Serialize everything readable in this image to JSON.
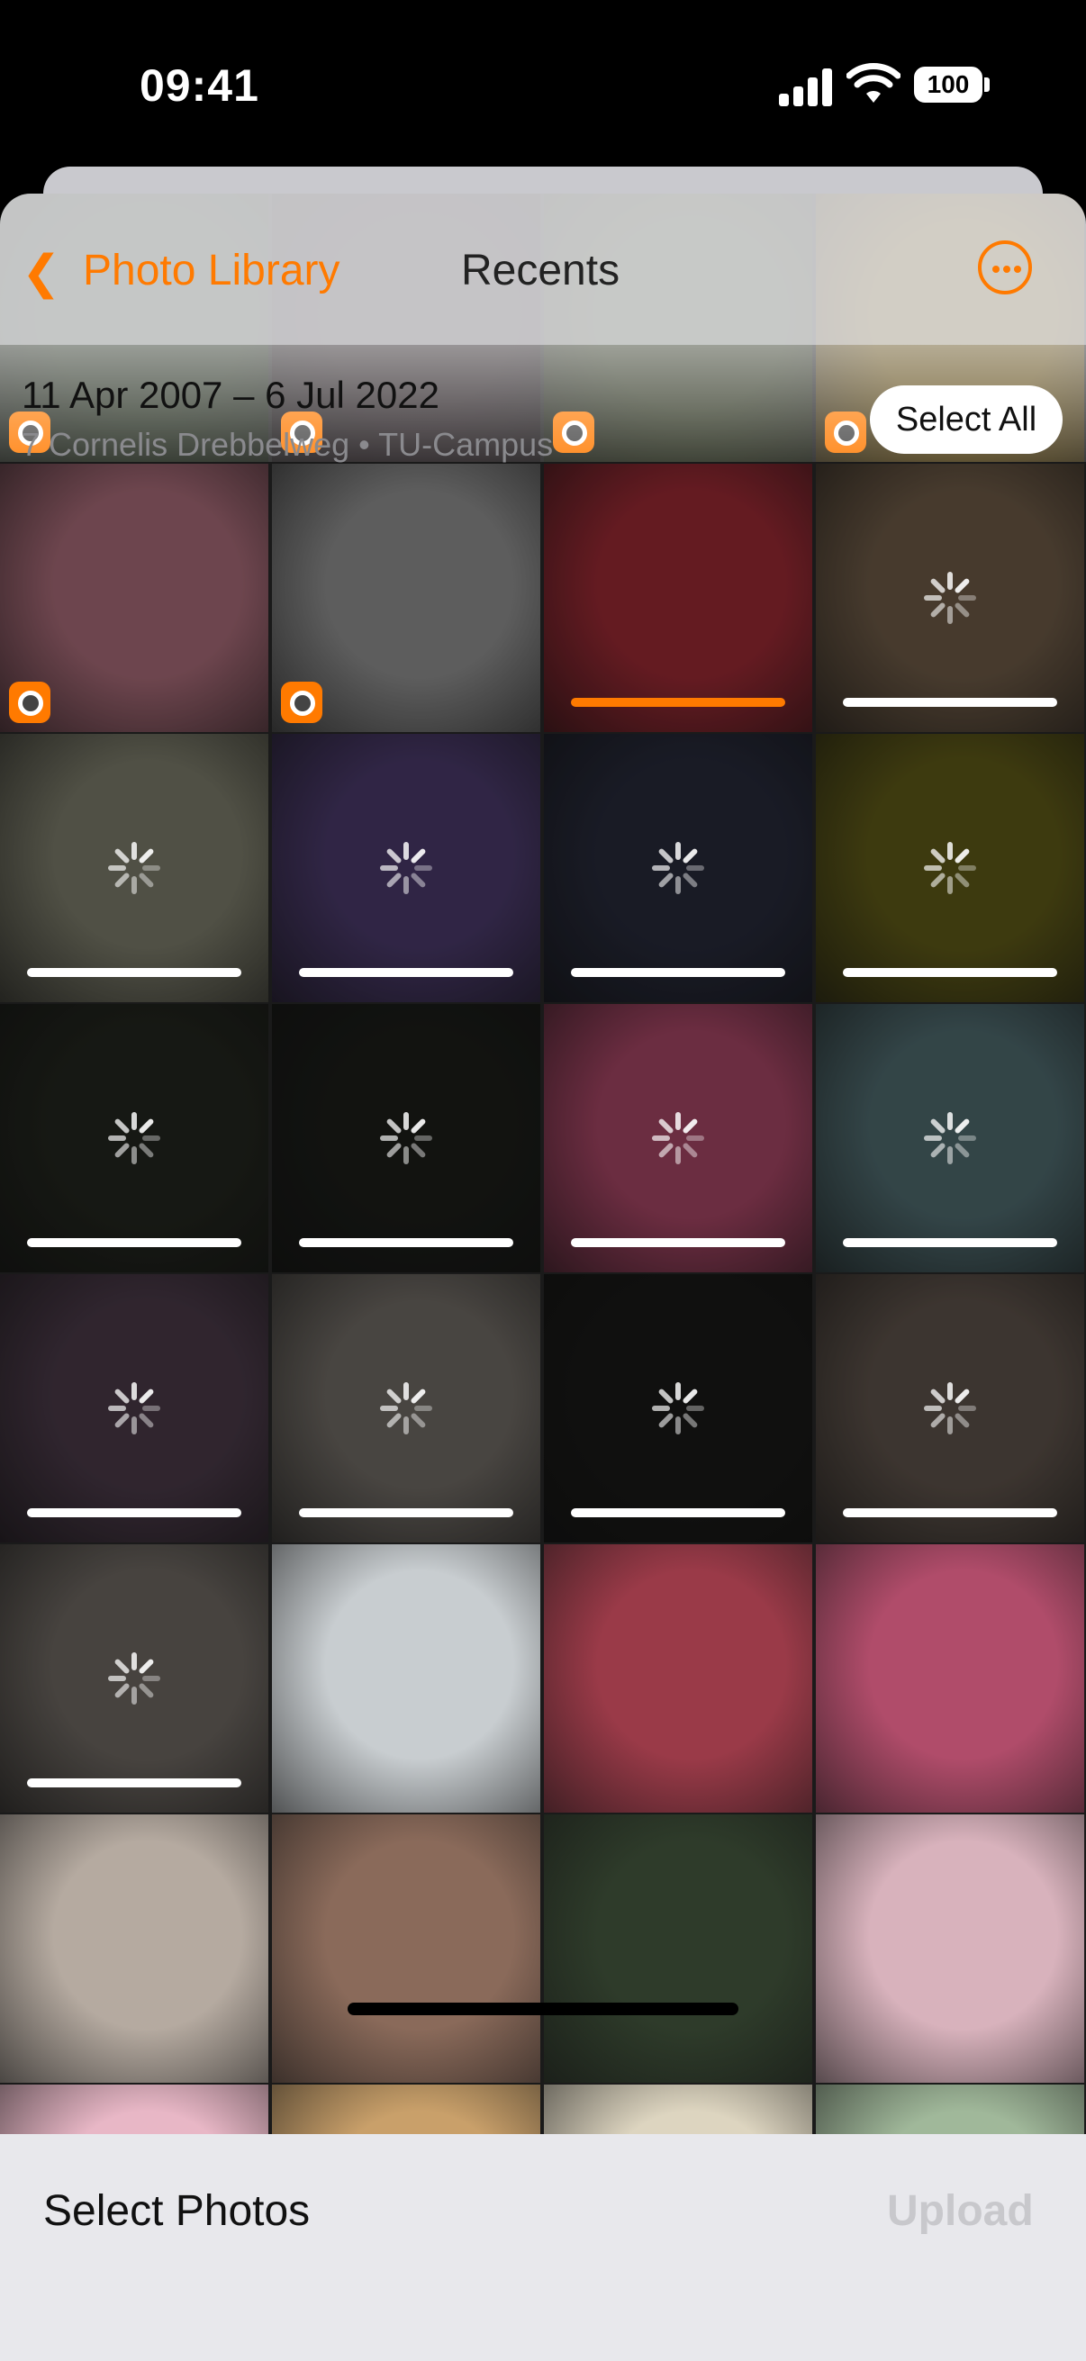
{
  "status": {
    "time": "09:41",
    "battery": "100"
  },
  "nav": {
    "back_label": "Photo Library",
    "title": "Recents"
  },
  "section": {
    "date_range": "11 Apr 2007 – 6 Jul 2022",
    "location": "7 Cornelis Drebbelweg • TU-Campus",
    "select_all": "Select All"
  },
  "bottom": {
    "title": "Select Photos",
    "upload": "Upload"
  },
  "colors": {
    "accent": "#ff7a00"
  },
  "photos": [
    {
      "c": "#2c3a24",
      "state": "uploaded"
    },
    {
      "c": "#2b1f24",
      "state": "uploaded"
    },
    {
      "c": "#3c4628",
      "state": "uploaded"
    },
    {
      "c": "#8a6a1a",
      "state": "uploaded"
    },
    {
      "c": "#a86b78",
      "state": "uploaded"
    },
    {
      "c": "#8f8f8f",
      "state": "uploaded"
    },
    {
      "c": "#9a2a34",
      "state": "progress-orange"
    },
    {
      "c": "#6d5a46",
      "state": "uploading"
    },
    {
      "c": "#7b7b6a",
      "state": "uploading"
    },
    {
      "c": "#4a3a6a",
      "state": "uploading"
    },
    {
      "c": "#272a3a",
      "state": "uploading"
    },
    {
      "c": "#5f5a18",
      "state": "uploading"
    },
    {
      "c": "#23261f",
      "state": "uploading"
    },
    {
      "c": "#1c1e1a",
      "state": "uploading"
    },
    {
      "c": "#a54564",
      "state": "uploading"
    },
    {
      "c": "#4f6a6e",
      "state": "uploading"
    },
    {
      "c": "#4a3a48",
      "state": "uploading"
    },
    {
      "c": "#6f6a64",
      "state": "uploading"
    },
    {
      "c": "#1a1a18",
      "state": "uploading"
    },
    {
      "c": "#5d524a",
      "state": "uploading"
    },
    {
      "c": "#6e6862",
      "state": "uploading"
    },
    {
      "c": "#c8cdd0",
      "state": "done"
    },
    {
      "c": "#9a3a48",
      "state": "done"
    },
    {
      "c": "#b04c6a",
      "state": "done"
    },
    {
      "c": "#b5aaa0",
      "state": "done"
    },
    {
      "c": "#8a6a5a",
      "state": "done"
    },
    {
      "c": "#2e3b2a",
      "state": "done"
    },
    {
      "c": "#d8b2bc",
      "state": "done"
    },
    {
      "c": "#e8b7c6",
      "state": "done"
    },
    {
      "c": "#c9a06a",
      "state": "done"
    },
    {
      "c": "#ddd5c0",
      "state": "done"
    },
    {
      "c": "#a0b89a",
      "state": "done"
    }
  ]
}
